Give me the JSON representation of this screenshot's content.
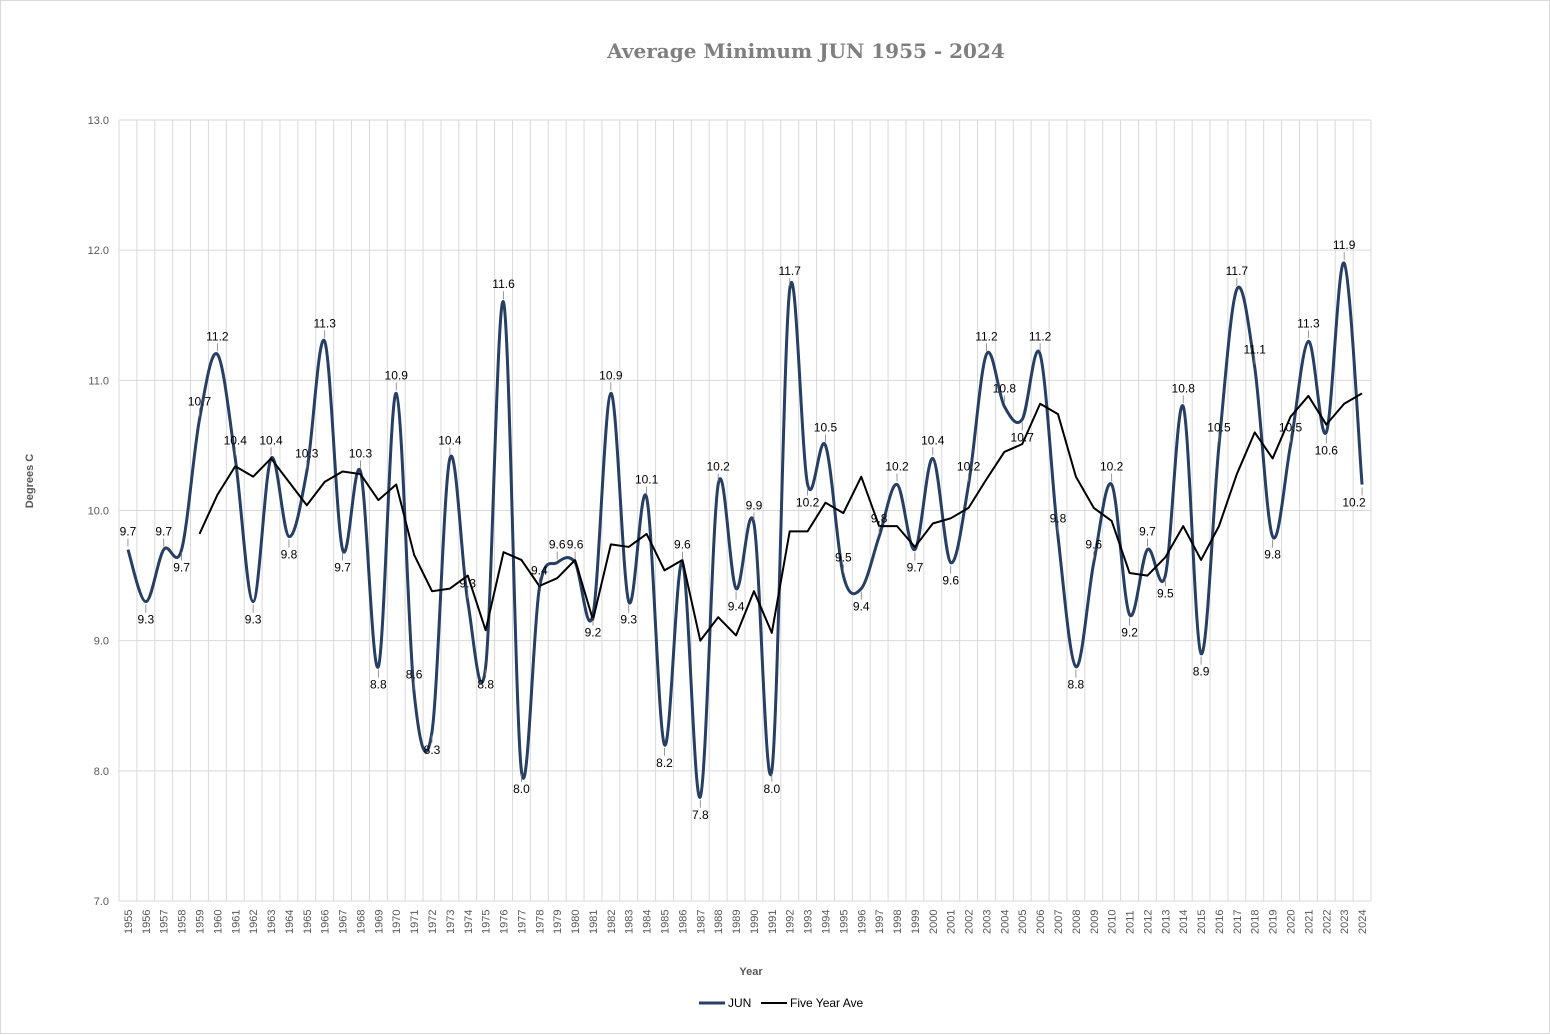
{
  "chart_data": {
    "type": "line",
    "title": "Average Minimum JUN 1955 - 2024",
    "xlabel": "Year",
    "ylabel": "Degrees C",
    "ylim": [
      7.0,
      13.0
    ],
    "yticks": [
      "7.0",
      "8.0",
      "9.0",
      "10.0",
      "11.0",
      "12.0",
      "13.0"
    ],
    "grid": true,
    "legend_position": "bottom",
    "categories": [
      "1955",
      "1956",
      "1957",
      "1958",
      "1959",
      "1960",
      "1961",
      "1962",
      "1963",
      "1964",
      "1965",
      "1966",
      "1967",
      "1968",
      "1969",
      "1970",
      "1971",
      "1972",
      "1973",
      "1974",
      "1975",
      "1976",
      "1977",
      "1978",
      "1979",
      "1980",
      "1981",
      "1982",
      "1983",
      "1984",
      "1985",
      "1986",
      "1987",
      "1988",
      "1989",
      "1990",
      "1991",
      "1992",
      "1993",
      "1994",
      "1995",
      "1996",
      "1997",
      "1998",
      "1999",
      "2000",
      "2001",
      "2002",
      "2003",
      "2004",
      "2005",
      "2006",
      "2007",
      "2008",
      "2009",
      "2010",
      "2011",
      "2012",
      "2013",
      "2014",
      "2015",
      "2016",
      "2017",
      "2018",
      "2019",
      "2020",
      "2021",
      "2022",
      "2023",
      "2024"
    ],
    "series": [
      {
        "name": "JUN",
        "color": "#263f63",
        "smooth": true,
        "values": [
          9.7,
          9.3,
          9.7,
          9.7,
          10.7,
          11.2,
          10.4,
          9.3,
          10.4,
          9.8,
          10.3,
          11.3,
          9.7,
          10.3,
          8.8,
          10.9,
          8.6,
          8.3,
          10.4,
          9.3,
          8.8,
          11.6,
          8.0,
          9.4,
          9.6,
          9.6,
          9.2,
          10.9,
          9.3,
          10.1,
          8.2,
          9.6,
          7.8,
          10.2,
          9.4,
          9.9,
          8.0,
          11.7,
          10.2,
          10.5,
          9.5,
          9.4,
          9.8,
          10.2,
          9.7,
          10.4,
          9.6,
          10.2,
          11.2,
          10.8,
          10.7,
          11.2,
          9.8,
          8.8,
          9.6,
          10.2,
          9.2,
          9.7,
          9.5,
          10.8,
          8.9,
          10.5,
          11.7,
          11.1,
          9.8,
          10.5,
          11.3,
          10.6,
          11.9,
          10.2
        ]
      },
      {
        "name": "Five Year Ave",
        "color": "#000000",
        "smooth": false,
        "values": [
          null,
          null,
          null,
          null,
          9.82,
          10.12,
          10.34,
          10.26,
          10.4,
          10.22,
          10.04,
          10.22,
          10.3,
          10.28,
          10.08,
          10.2,
          9.66,
          9.38,
          9.4,
          9.5,
          9.08,
          9.68,
          9.62,
          9.42,
          9.48,
          9.62,
          9.16,
          9.74,
          9.72,
          9.82,
          9.54,
          9.62,
          9.0,
          9.18,
          9.04,
          9.38,
          9.06,
          9.84,
          9.84,
          10.06,
          9.98,
          10.26,
          9.88,
          9.88,
          9.72,
          9.9,
          9.94,
          10.02,
          10.24,
          10.45,
          10.51,
          10.82,
          10.74,
          10.26,
          10.02,
          9.92,
          9.52,
          9.5,
          9.64,
          9.88,
          9.62,
          9.88,
          10.28,
          10.6,
          10.4,
          10.72,
          10.88,
          10.66,
          10.82,
          10.9
        ]
      }
    ],
    "data_labels": [
      "9.7",
      "9.3",
      "9.7",
      "9.7",
      "10.7",
      "11.2",
      "10.4",
      "9.3",
      "10.4",
      "9.8",
      "10.3",
      "11.3",
      "9.7",
      "10.3",
      "8.8",
      "10.9",
      "8.6",
      "8.3",
      "10.4",
      "9.3",
      "8.8",
      "11.6",
      "8.0",
      "9.4",
      "9.6",
      "9.6",
      "9.2",
      "10.9",
      "9.3",
      "10.1",
      "8.2",
      "9.6",
      "7.8",
      "10.2",
      "9.4",
      "9.9",
      "8.0",
      "11.7",
      "10.2",
      "10.5",
      "9.5",
      "9.4",
      "9.8",
      "10.2",
      "9.7",
      "10.4",
      "9.6",
      "10.2",
      "11.2",
      "10.8",
      "10.7",
      "11.2",
      "9.8",
      "8.8",
      "9.6",
      "10.2",
      "9.2",
      "9.7",
      "9.5",
      "10.8",
      "8.9",
      "10.5",
      "11.7",
      "11.1",
      "9.8",
      "10.5",
      "11.3",
      "10.6",
      "11.9",
      "10.2"
    ]
  }
}
